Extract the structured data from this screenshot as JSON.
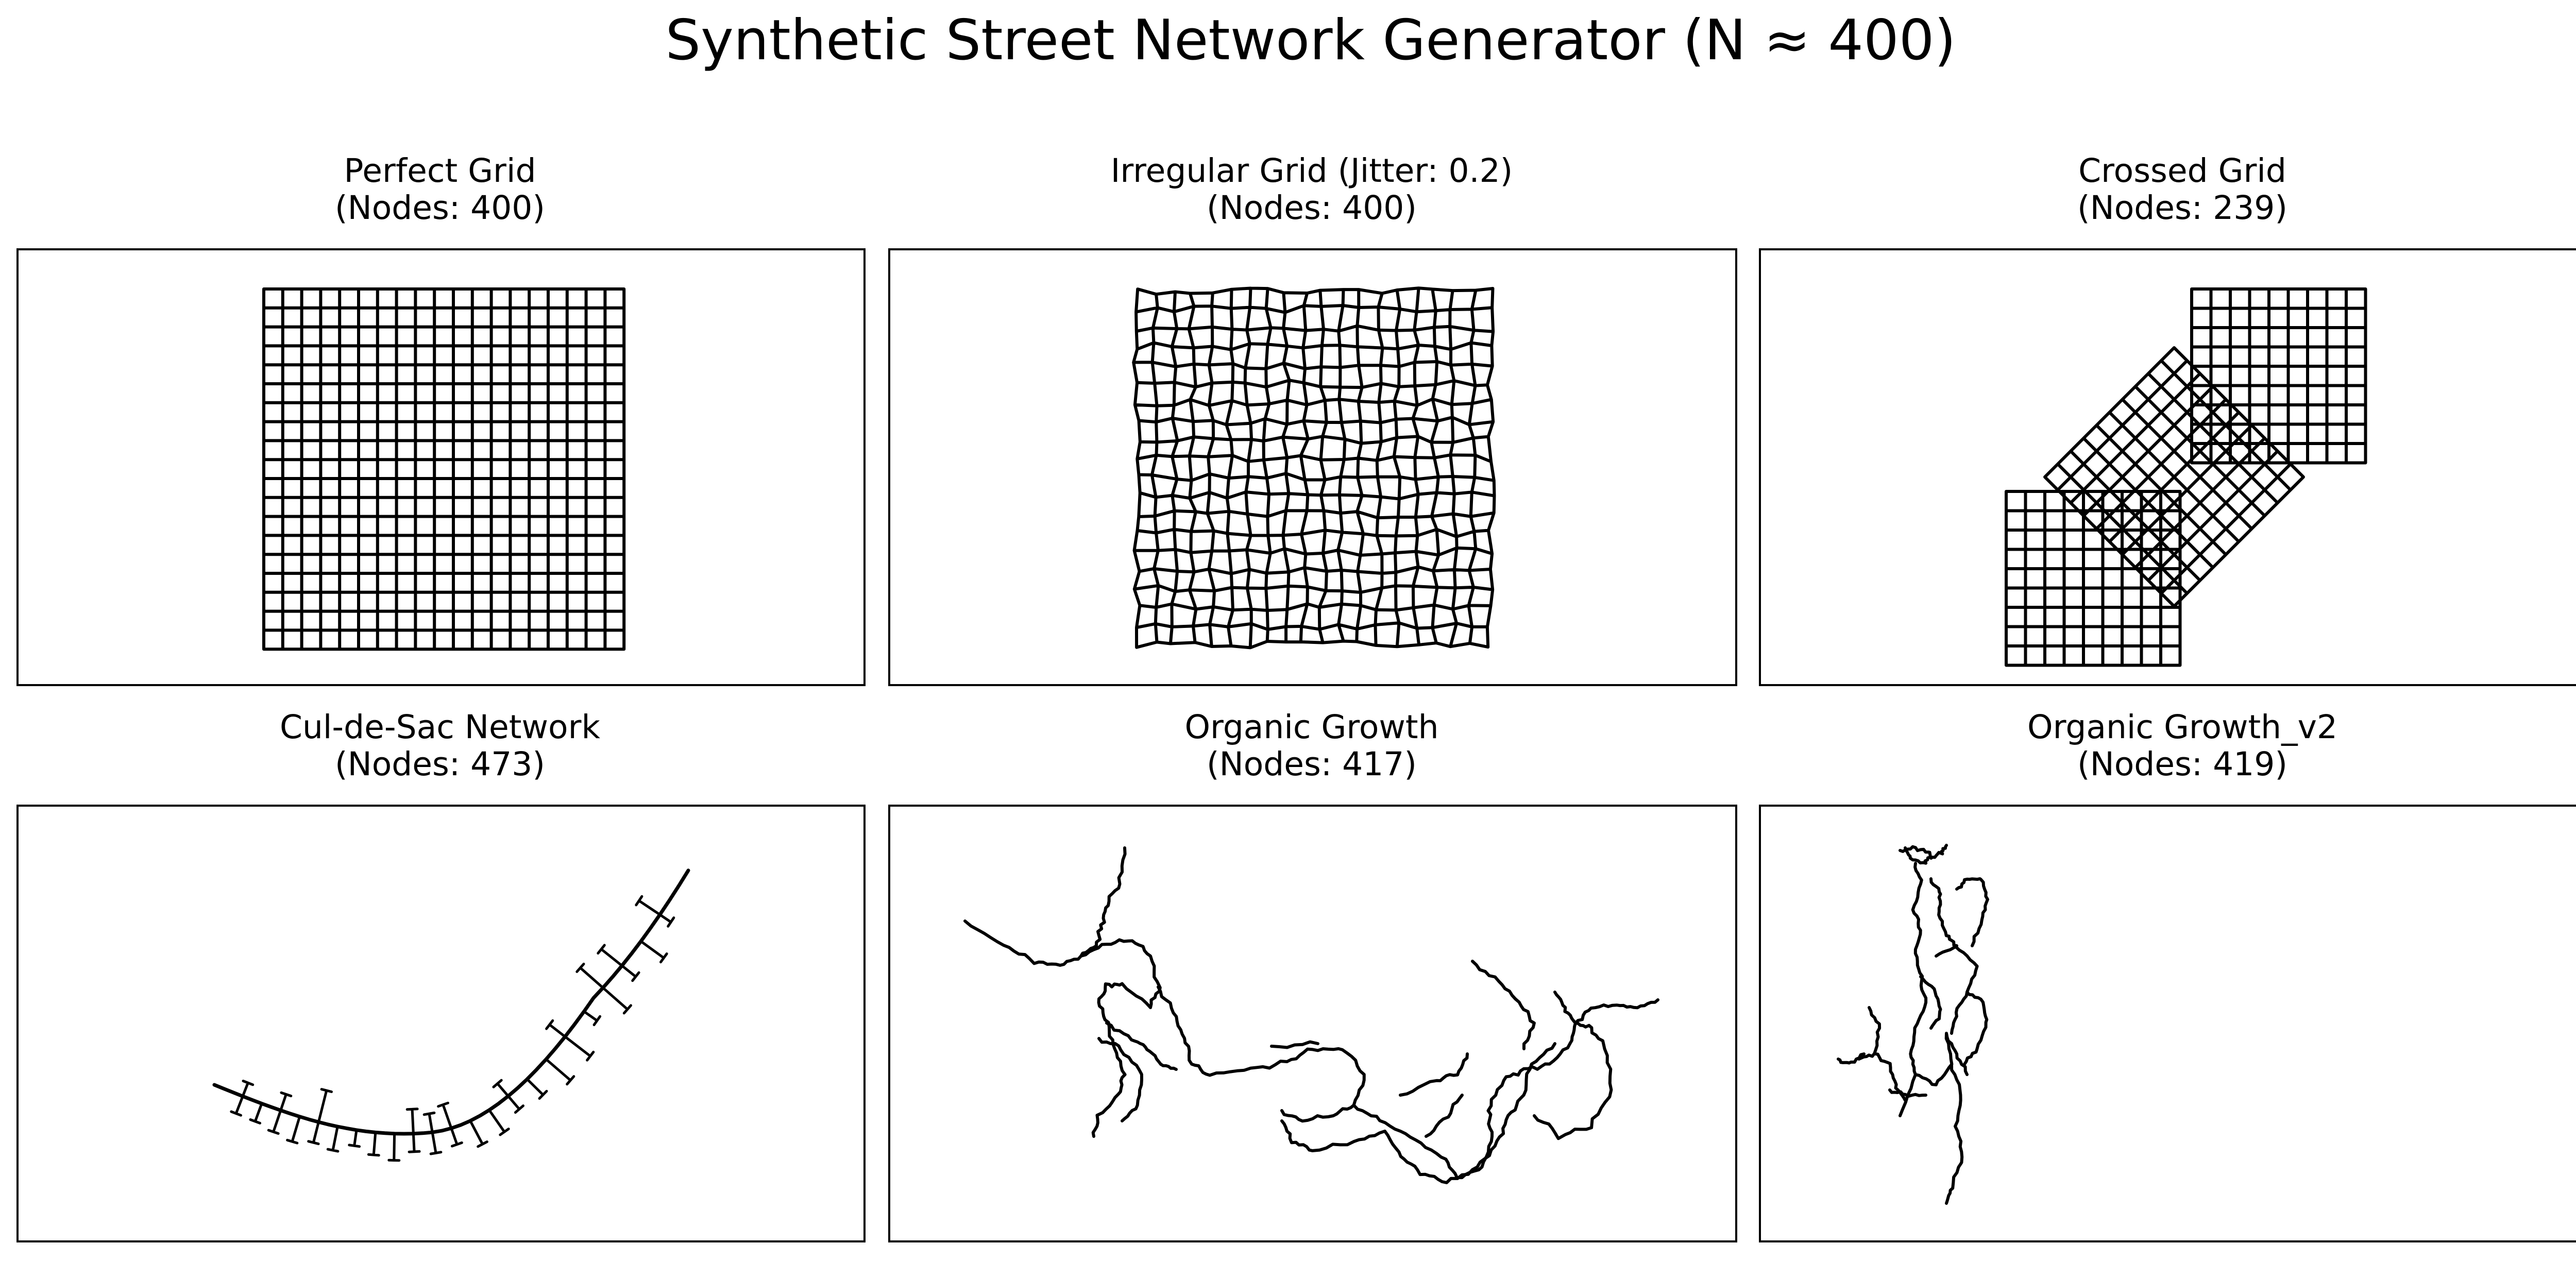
{
  "figure": {
    "title": "Synthetic Street Network Generator (N ≈ 400)"
  },
  "style": {
    "stroke_color": "#000000",
    "background": "#ffffff"
  },
  "panels": [
    {
      "title": "Perfect Grid",
      "subtitle": "(Nodes: 400)",
      "kind": "grid"
    },
    {
      "title": "Irregular Grid (Jitter: 0.2)",
      "subtitle": "(Nodes: 400)",
      "kind": "jitter"
    },
    {
      "title": "Crossed Grid",
      "subtitle": "(Nodes: 239)",
      "kind": "crossed"
    },
    {
      "title": "Cul-de-Sac Network",
      "subtitle": "(Nodes: 473)",
      "kind": "culdesac"
    },
    {
      "title": "Organic Growth",
      "subtitle": "(Nodes: 417)",
      "kind": "organic"
    },
    {
      "title": "Organic Growth_v2",
      "subtitle": "(Nodes: 419)",
      "kind": "organic2"
    }
  ]
}
